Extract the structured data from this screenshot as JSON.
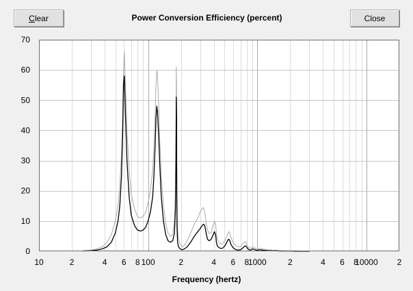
{
  "toolbar": {
    "clear_label_accel": "C",
    "clear_label_rest": "lear",
    "close_label": "Close"
  },
  "chart_data": {
    "type": "line",
    "title": "Power Conversion Efficiency (percent)",
    "xlabel": "Frequency (hertz)",
    "ylabel": "",
    "xscale": "log",
    "xlim": [
      10,
      20000
    ],
    "ylim": [
      0,
      70
    ],
    "grid": true,
    "yticks": [
      0,
      10,
      20,
      30,
      40,
      50,
      60,
      70
    ],
    "xticks": [
      {
        "value": 10,
        "label": "10"
      },
      {
        "value": 20,
        "label": "2"
      },
      {
        "value": 40,
        "label": "4"
      },
      {
        "value": 60,
        "label": "6"
      },
      {
        "value": 80,
        "label": "8"
      },
      {
        "value": 100,
        "label": "100"
      },
      {
        "value": 200,
        "label": "2"
      },
      {
        "value": 400,
        "label": "4"
      },
      {
        "value": 600,
        "label": "6"
      },
      {
        "value": 800,
        "label": "8"
      },
      {
        "value": 1000,
        "label": "1000"
      },
      {
        "value": 2000,
        "label": "2"
      },
      {
        "value": 4000,
        "label": "4"
      },
      {
        "value": 6000,
        "label": "6"
      },
      {
        "value": 8000,
        "label": "8"
      },
      {
        "value": 10000,
        "label": "10000"
      },
      {
        "value": 20000,
        "label": "2"
      }
    ],
    "series": [
      {
        "color": "#aaaaaa",
        "x": [
          25,
          30,
          34,
          38,
          42,
          46,
          50,
          53,
          55,
          57,
          58.5,
          59.5,
          60.5,
          62,
          64,
          67,
          70,
          75,
          80,
          85,
          90,
          95,
          100,
          105,
          110,
          113,
          116,
          118,
          120,
          122,
          125,
          128,
          132,
          138,
          145,
          152,
          160,
          168,
          174,
          178,
          180,
          181,
          182,
          183,
          184,
          186,
          190,
          196,
          205,
          215,
          228,
          245,
          265,
          285,
          300,
          312,
          322,
          330,
          336,
          342,
          350,
          360,
          375,
          390,
          405,
          415,
          422,
          430,
          445,
          460,
          480,
          505,
          525,
          540,
          550,
          560,
          575,
          600,
          630,
          660,
          700,
          730,
          760,
          780,
          800,
          820,
          850,
          880,
          900,
          930,
          960,
          990,
          1020,
          1050,
          1100,
          1150,
          1180,
          1250,
          1300,
          1400,
          1500,
          1600,
          1750,
          1900,
          2050,
          2200,
          2400,
          2600,
          3000
        ],
        "y": [
          0.2,
          0.4,
          0.8,
          1.5,
          3,
          5.5,
          10,
          15,
          22,
          32,
          45,
          60,
          66,
          55,
          40,
          27,
          19,
          14,
          11.5,
          11,
          11.5,
          13,
          16,
          20,
          27,
          35,
          45,
          55,
          60,
          58,
          48,
          36,
          25,
          15,
          9,
          6,
          5,
          5.5,
          10,
          20,
          40,
          61,
          55,
          30,
          15,
          7,
          4,
          2.5,
          1.5,
          2,
          3.5,
          6,
          9,
          11,
          13,
          14,
          14.5,
          13,
          11,
          9,
          7,
          6,
          6,
          8,
          10,
          9,
          6,
          4,
          3,
          2.5,
          2.5,
          3.5,
          5,
          6,
          6.5,
          6,
          4.5,
          3,
          2,
          1.5,
          1.5,
          2.5,
          3,
          3.2,
          2.5,
          1.5,
          1,
          1.2,
          1.5,
          1.4,
          1,
          0.6,
          0.8,
          1,
          0.9,
          0.6,
          0.7,
          0.4,
          0.5,
          0.3,
          0.4,
          0.3,
          0.3,
          0.2,
          0.2,
          0.15,
          0.15,
          0.1,
          0.1
        ]
      },
      {
        "color": "#000000",
        "x": [
          25,
          30,
          34,
          38,
          42,
          46,
          50,
          53,
          55,
          57,
          58.5,
          59.5,
          60.5,
          62,
          64,
          67,
          70,
          75,
          80,
          85,
          90,
          95,
          100,
          105,
          110,
          113,
          116,
          118,
          120,
          122,
          125,
          128,
          132,
          138,
          145,
          152,
          160,
          168,
          174,
          178,
          180,
          181,
          182,
          183,
          184,
          186,
          190,
          196,
          205,
          215,
          228,
          245,
          265,
          285,
          300,
          312,
          322,
          330,
          336,
          342,
          350,
          360,
          375,
          390,
          405,
          415,
          422,
          430,
          445,
          460,
          480,
          505,
          525,
          540,
          550,
          560,
          575,
          600,
          630,
          660,
          700,
          730,
          760,
          780,
          800,
          820,
          850,
          880,
          900,
          930,
          960,
          990,
          1020,
          1050,
          1100,
          1150,
          1180,
          1250,
          1300,
          1400,
          1500,
          1600,
          1750,
          1900,
          2050,
          2200,
          2400,
          2600,
          3000
        ],
        "y": [
          0.1,
          0.2,
          0.4,
          0.8,
          1.5,
          3,
          6,
          10,
          15,
          25,
          40,
          55,
          58,
          45,
          30,
          18,
          12,
          8.5,
          7,
          6.7,
          7,
          8,
          10,
          13,
          18,
          25,
          35,
          44,
          48,
          46,
          38,
          28,
          18,
          10,
          5.5,
          3.5,
          3,
          3.5,
          6,
          14,
          32,
          51,
          45,
          20,
          8,
          3,
          1.5,
          0.8,
          0.5,
          0.8,
          1.5,
          3,
          5,
          6.5,
          7.5,
          8.5,
          9,
          8.5,
          7,
          5.5,
          4,
          3.5,
          3.8,
          5,
          6.5,
          5.5,
          3,
          1.8,
          1.2,
          1,
          1,
          1.8,
          3,
          3.8,
          4,
          3.5,
          2.2,
          1.2,
          0.6,
          0.4,
          0.5,
          1,
          1.6,
          1.8,
          1.4,
          0.8,
          0.4,
          0.5,
          0.8,
          0.7,
          0.5,
          0.3,
          0.4,
          0.5,
          0.4,
          0.3,
          0.3,
          0.2,
          0.2,
          0.15,
          0.15,
          0.1,
          0.1,
          0.08,
          0.08,
          0.05,
          0.05,
          0.03,
          0.02
        ]
      }
    ]
  }
}
